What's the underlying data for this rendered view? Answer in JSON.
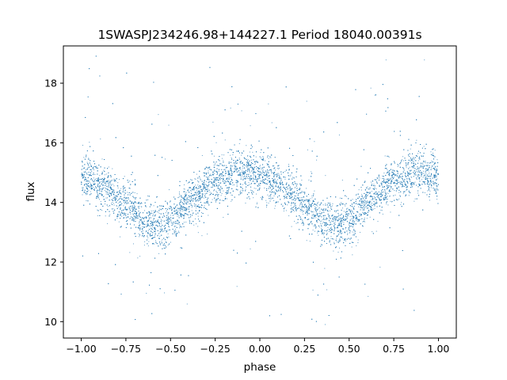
{
  "chart_data": {
    "type": "scatter",
    "title": "1SWASPJ234246.98+144227.1 Period 18040.00391s",
    "xlabel": "phase",
    "ylabel": "flux",
    "xlim": [
      -1.1,
      1.1
    ],
    "ylim": [
      9.45,
      19.25
    ],
    "xticks": [
      -1.0,
      -0.75,
      -0.5,
      -0.25,
      0.0,
      0.25,
      0.5,
      0.75,
      1.0
    ],
    "xtick_labels": [
      "−1.00",
      "−0.75",
      "−0.50",
      "−0.25",
      "0.00",
      "0.25",
      "0.50",
      "0.75",
      "1.00"
    ],
    "yticks": [
      10,
      12,
      14,
      16,
      18
    ],
    "ytick_labels": [
      "10",
      "12",
      "14",
      "16",
      "18"
    ],
    "grid": false,
    "marker_color": "#1f77b4",
    "series": [
      {
        "description_points": [
          {
            "x": -1.0,
            "y": 14.9
          },
          {
            "x": -0.875,
            "y": 14.5
          },
          {
            "x": -0.75,
            "y": 13.9
          },
          {
            "x": -0.625,
            "y": 13.3
          },
          {
            "x": -0.575,
            "y": 13.2
          },
          {
            "x": -0.5,
            "y": 13.4
          },
          {
            "x": -0.375,
            "y": 14.1
          },
          {
            "x": -0.25,
            "y": 14.7
          },
          {
            "x": -0.125,
            "y": 15.0
          },
          {
            "x": -0.075,
            "y": 15.05
          },
          {
            "x": 0.0,
            "y": 14.9
          },
          {
            "x": 0.125,
            "y": 14.5
          },
          {
            "x": 0.25,
            "y": 13.9
          },
          {
            "x": 0.375,
            "y": 13.3
          },
          {
            "x": 0.425,
            "y": 13.2
          },
          {
            "x": 0.5,
            "y": 13.4
          },
          {
            "x": 0.625,
            "y": 14.1
          },
          {
            "x": 0.75,
            "y": 14.7
          },
          {
            "x": 0.875,
            "y": 15.0
          },
          {
            "x": 1.0,
            "y": 14.9
          }
        ]
      }
    ]
  }
}
